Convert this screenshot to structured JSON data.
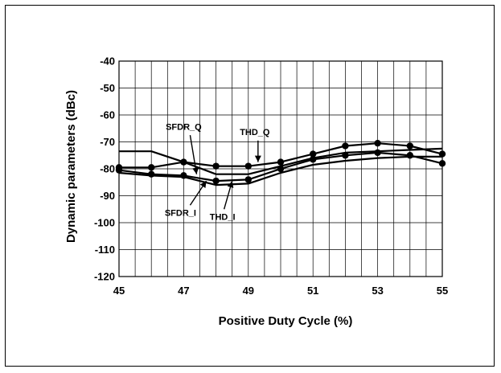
{
  "chart_data": {
    "type": "line",
    "title": "",
    "xlabel": "Positive Duty Cycle (%)",
    "ylabel": "Dynamic parameters (dBc)",
    "xlim": [
      45,
      55
    ],
    "ylim": [
      -120,
      -40
    ],
    "x_ticks": [
      "45",
      "47",
      "49",
      "51",
      "53",
      "55"
    ],
    "y_ticks": [
      "-40",
      "-50",
      "-60",
      "-70",
      "-80",
      "-90",
      "-100",
      "-110",
      "-120"
    ],
    "grid": true,
    "legend": "none",
    "series": [
      {
        "name": "SFDR_Q",
        "marker": "none",
        "x": [
          45,
          46,
          47,
          48,
          49,
          50,
          51,
          52,
          53,
          54,
          55
        ],
        "y": [
          -73.5,
          -73.5,
          -77.5,
          -82.0,
          -82.0,
          -79.0,
          -76.0,
          -74.0,
          -73.5,
          -73.0,
          -72.5
        ]
      },
      {
        "name": "SFDR_I",
        "marker": "circle",
        "x": [
          45,
          46,
          47,
          48,
          49,
          50,
          51,
          52,
          53,
          54,
          55
        ],
        "y": [
          -80.5,
          -82.0,
          -82.5,
          -84.5,
          -84.0,
          -80.0,
          -76.5,
          -75.0,
          -74.0,
          -75.0,
          -78.0
        ]
      },
      {
        "name": "THD_Q",
        "marker": "circle",
        "x": [
          45,
          46,
          47,
          48,
          49,
          50,
          51,
          52,
          53,
          54,
          55
        ],
        "y": [
          -79.5,
          -79.5,
          -77.5,
          -79.0,
          -79.0,
          -77.5,
          -74.5,
          -71.5,
          -70.5,
          -71.5,
          -74.5
        ]
      },
      {
        "name": "THD_I",
        "marker": "none",
        "x": [
          45,
          46,
          47,
          48,
          49,
          50,
          51,
          52,
          53,
          54,
          55
        ],
        "y": [
          -81.5,
          -82.5,
          -83.0,
          -86.0,
          -85.5,
          -81.5,
          -78.5,
          -77.0,
          -76.0,
          -75.5,
          -75.5
        ]
      }
    ],
    "annotations": [
      {
        "text": "SFDR_Q",
        "x": 47.0,
        "y": -65.5
      },
      {
        "text": "THD_Q",
        "x": 49.2,
        "y": -67.5
      },
      {
        "text": "SFDR_I",
        "x": 46.9,
        "y": -97.5
      },
      {
        "text": "THD_I",
        "x": 48.2,
        "y": -99.0
      }
    ]
  }
}
